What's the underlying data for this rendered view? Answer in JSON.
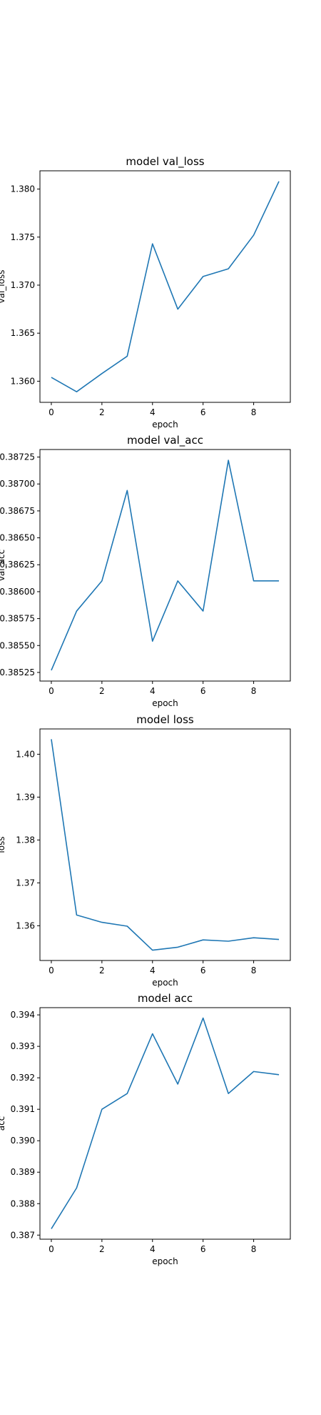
{
  "chart_data": [
    {
      "type": "line",
      "title": "model val_loss",
      "xlabel": "epoch",
      "ylabel": "val_loss",
      "x": [
        0,
        1,
        2,
        3,
        4,
        5,
        6,
        7,
        8,
        9
      ],
      "values": [
        1.3604,
        1.3589,
        1.3608,
        1.3626,
        1.3743,
        1.3675,
        1.3709,
        1.3717,
        1.3752,
        1.3808
      ],
      "xlim": [
        -0.45,
        9.45
      ],
      "ylim": [
        1.3578,
        1.3819
      ],
      "xticks": [
        0,
        2,
        4,
        6,
        8
      ],
      "xtick_labels": [
        "0",
        "2",
        "4",
        "6",
        "8"
      ],
      "yticks": [
        1.36,
        1.365,
        1.37,
        1.375,
        1.38
      ],
      "ytick_labels": [
        "1.360",
        "1.365",
        "1.370",
        "1.375",
        "1.380"
      ],
      "grid": false,
      "color": "#1f77b4"
    },
    {
      "type": "line",
      "title": "model val_acc",
      "xlabel": "epoch",
      "ylabel": "val_acc",
      "x": [
        0,
        1,
        2,
        3,
        4,
        5,
        6,
        7,
        8,
        9
      ],
      "values": [
        0.38527,
        0.38582,
        0.3861,
        0.38694,
        0.38554,
        0.3861,
        0.38582,
        0.38722,
        0.3861,
        0.3861
      ],
      "xlim": [
        -0.45,
        9.45
      ],
      "ylim": [
        0.38517,
        0.38732
      ],
      "xticks": [
        0,
        2,
        4,
        6,
        8
      ],
      "xtick_labels": [
        "0",
        "2",
        "4",
        "6",
        "8"
      ],
      "yticks": [
        0.38525,
        0.3855,
        0.38575,
        0.386,
        0.38625,
        0.3865,
        0.38675,
        0.387,
        0.38725
      ],
      "ytick_labels": [
        "0.38525",
        "0.38550",
        "0.38575",
        "0.38600",
        "0.38625",
        "0.38650",
        "0.38675",
        "0.38700",
        "0.38725"
      ],
      "grid": false,
      "color": "#1f77b4"
    },
    {
      "type": "line",
      "title": "model loss",
      "xlabel": "epoch",
      "ylabel": "loss",
      "x": [
        0,
        1,
        2,
        3,
        4,
        5,
        6,
        7,
        8,
        9
      ],
      "values": [
        1.4035,
        1.3625,
        1.3608,
        1.3599,
        1.3543,
        1.355,
        1.3567,
        1.3564,
        1.3572,
        1.3568
      ],
      "xlim": [
        -0.45,
        9.45
      ],
      "ylim": [
        1.3519,
        1.4059
      ],
      "xticks": [
        0,
        2,
        4,
        6,
        8
      ],
      "xtick_labels": [
        "0",
        "2",
        "4",
        "6",
        "8"
      ],
      "yticks": [
        1.36,
        1.37,
        1.38,
        1.39,
        1.4
      ],
      "ytick_labels": [
        "1.36",
        "1.37",
        "1.38",
        "1.39",
        "1.40"
      ],
      "grid": false,
      "color": "#1f77b4"
    },
    {
      "type": "line",
      "title": "model acc",
      "xlabel": "epoch",
      "ylabel": "acc",
      "x": [
        0,
        1,
        2,
        3,
        4,
        5,
        6,
        7,
        8,
        9
      ],
      "values": [
        0.3872,
        0.3885,
        0.391,
        0.3915,
        0.3934,
        0.3918,
        0.3939,
        0.3915,
        0.3922,
        0.3921
      ],
      "xlim": [
        -0.45,
        9.45
      ],
      "ylim": [
        0.38687,
        0.39423
      ],
      "xticks": [
        0,
        2,
        4,
        6,
        8
      ],
      "xtick_labels": [
        "0",
        "2",
        "4",
        "6",
        "8"
      ],
      "yticks": [
        0.387,
        0.388,
        0.389,
        0.39,
        0.391,
        0.392,
        0.393,
        0.394
      ],
      "ytick_labels": [
        "0.387",
        "0.388",
        "0.389",
        "0.390",
        "0.391",
        "0.392",
        "0.393",
        "0.394"
      ],
      "grid": false,
      "color": "#1f77b4"
    }
  ]
}
